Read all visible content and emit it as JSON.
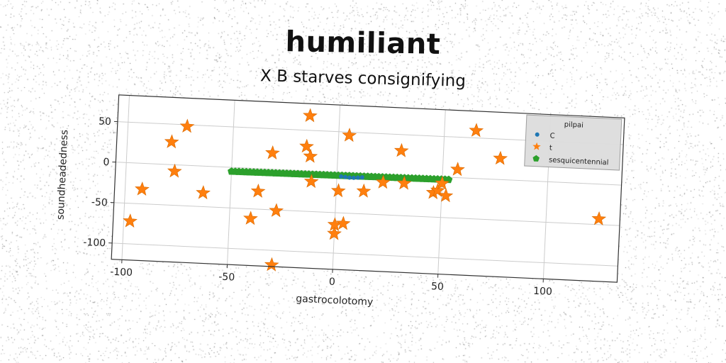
{
  "title": "humiliant",
  "subtitle": "X B starves consignifying",
  "chart_data": {
    "type": "scatter",
    "title": "humiliant",
    "subtitle": "X B starves consignifying",
    "xlabel": "gastrocolotomy",
    "ylabel": "soundheadedness",
    "xlim": [
      -105,
      135
    ],
    "ylim": [
      -120,
      83
    ],
    "xticks": [
      -100,
      -50,
      0,
      50,
      100
    ],
    "yticks": [
      50,
      0,
      -50,
      -100
    ],
    "grid": true,
    "legend": {
      "title": "pilpai",
      "placement": "top-right"
    },
    "series": [
      {
        "name": "C",
        "color": "#1f77b4",
        "marker": "circle",
        "x": [
          2,
          4,
          6,
          8,
          10,
          12
        ],
        "y": [
          -5,
          -5.5,
          -6,
          -6,
          -5.5,
          -5
        ]
      },
      {
        "name": "t",
        "color": "#ff7f0e",
        "marker": "star",
        "x": [
          -97,
          -92,
          -79,
          -77,
          -72,
          -63,
          -40,
          -37,
          -31,
          -29,
          -28,
          -15,
          -14,
          -13,
          -12,
          0,
          0,
          1,
          4,
          5,
          13,
          22,
          30,
          32,
          46,
          48,
          50,
          52,
          57,
          65,
          77,
          125
        ],
        "y": [
          -72,
          -32,
          28,
          -8,
          48,
          -33,
          -62,
          -28,
          20,
          -118,
          -51,
          30,
          68,
          18,
          -13,
          -76,
          -65,
          -23,
          -63,
          46,
          -22,
          -10,
          30,
          -10,
          -20,
          -17,
          -8,
          -23,
          10,
          59,
          26,
          -43
        ]
      },
      {
        "name": "sesquicentennial",
        "color": "#2ca02c",
        "marker": "pentagon",
        "x_range": [
          -50,
          53
        ],
        "y_start": -5,
        "y_end": -3,
        "count": 60
      }
    ]
  },
  "colors": {
    "background": "#ffffff",
    "plot_background": "#ffffff",
    "grid": "#cccccc",
    "axis": "#333333",
    "legend_bg": "#dddddd"
  }
}
